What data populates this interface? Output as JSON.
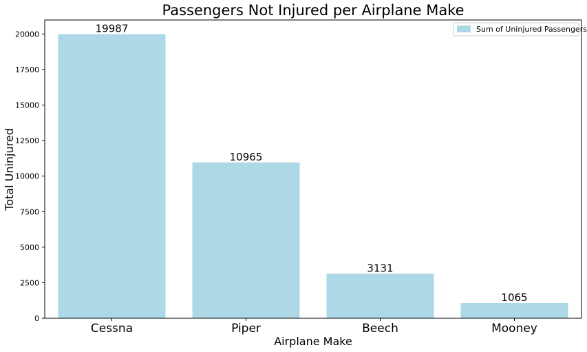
{
  "chart_data": {
    "type": "bar",
    "title": "Passengers Not Injured per Airplane Make",
    "xlabel": "Airplane Make",
    "ylabel": "Total Uninjured",
    "categories": [
      "Cessna",
      "Piper",
      "Beech",
      "Mooney"
    ],
    "series": [
      {
        "name": "Sum of Uninjured Passengers",
        "values": [
          19987,
          10965,
          3131,
          1065
        ]
      }
    ],
    "data_labels": [
      "19987",
      "10965",
      "3131",
      "1065"
    ],
    "ylim": [
      0,
      20986
    ],
    "yticks": [
      0,
      2500,
      5000,
      7500,
      10000,
      12500,
      15000,
      17500,
      20000
    ],
    "ytick_labels": [
      "0",
      "2500",
      "5000",
      "7500",
      "10000",
      "12500",
      "15000",
      "17500",
      "20000"
    ],
    "bar_color": "#add8e6",
    "grid": false,
    "legend": "top-right"
  }
}
